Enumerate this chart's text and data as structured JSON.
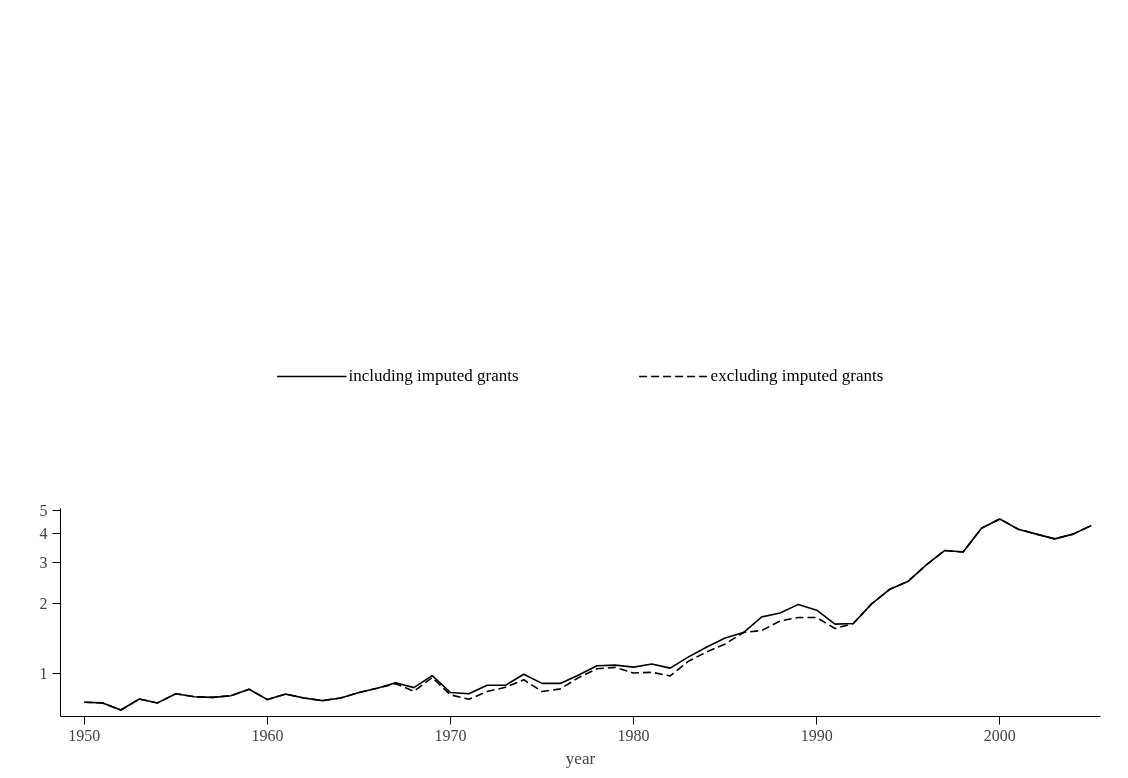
{
  "chart_data": {
    "type": "line",
    "xlabel": "year",
    "log": "y",
    "grid": false,
    "legend": "top",
    "marker": "none",
    "x": [
      1950,
      1951,
      1952,
      1953,
      1954,
      1955,
      1956,
      1957,
      1958,
      1959,
      1960,
      1961,
      1962,
      1963,
      1964,
      1965,
      1966,
      1967,
      1968,
      1969,
      1970,
      1971,
      1972,
      1973,
      1974,
      1975,
      1976,
      1977,
      1978,
      1979,
      1980,
      1981,
      1982,
      1983,
      1984,
      1985,
      1986,
      1987,
      1988,
      1989,
      1990,
      1991,
      1992,
      1993,
      1994,
      1995,
      1996,
      1997,
      1998,
      1999,
      2000,
      2001,
      2002,
      2003,
      2004,
      2005
    ],
    "series": [
      {
        "name": "including imputed grants",
        "color": "#000000",
        "line_style": "solid",
        "values": [
          0.754,
          0.749,
          0.698,
          0.778,
          0.749,
          0.82,
          0.796,
          0.791,
          0.804,
          0.857,
          0.774,
          0.817,
          0.786,
          0.766,
          0.786,
          0.83,
          0.866,
          0.914,
          0.871,
          0.981,
          0.83,
          0.82,
          0.891,
          0.891,
          0.994,
          0.908,
          0.908,
          0.987,
          1.08,
          1.087,
          1.066,
          1.1,
          1.056,
          1.18,
          1.3,
          1.42,
          1.5,
          1.75,
          1.82,
          1.98,
          1.87,
          1.63,
          1.64,
          1.99,
          2.3,
          2.49,
          2.93,
          3.37,
          3.32,
          4.2,
          4.6,
          4.16,
          3.96,
          3.78,
          3.96,
          4.31
        ]
      },
      {
        "name": "excluding imputed grants",
        "color": "#000000",
        "line_style": "dashed",
        "values": [
          0.754,
          0.749,
          0.698,
          0.778,
          0.749,
          0.82,
          0.796,
          0.791,
          0.804,
          0.857,
          0.774,
          0.817,
          0.786,
          0.766,
          0.786,
          0.83,
          0.866,
          0.905,
          0.84,
          0.962,
          0.811,
          0.776,
          0.838,
          0.874,
          0.941,
          0.838,
          0.86,
          0.962,
          1.049,
          1.063,
          1.006,
          1.013,
          0.978,
          1.13,
          1.24,
          1.34,
          1.5,
          1.53,
          1.68,
          1.74,
          1.74,
          1.56,
          1.64,
          1.99,
          2.3,
          2.49,
          2.93,
          3.37,
          3.32,
          4.2,
          4.6,
          4.16,
          3.96,
          3.78,
          3.96,
          4.31
        ]
      }
    ],
    "xlim": [
      1948.7,
      2005.5
    ],
    "ylim": [
      0.655,
      5.1
    ],
    "xticks": [
      1950,
      1960,
      1970,
      1980,
      1990,
      2000
    ],
    "yticks": [
      1,
      2,
      3,
      4,
      5
    ]
  }
}
